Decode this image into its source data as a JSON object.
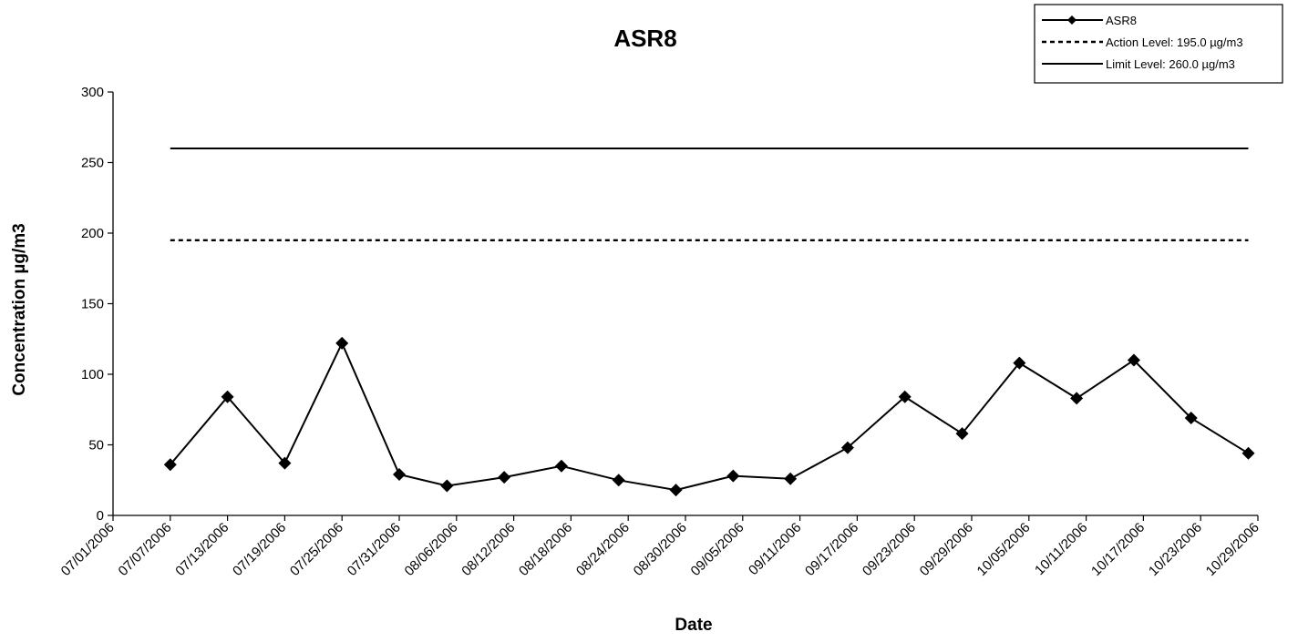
{
  "chart_data": {
    "type": "line",
    "title": "ASR8",
    "xlabel": "Date",
    "ylabel": "Concentration µg/m3",
    "ylim": [
      0,
      300
    ],
    "yticks": [
      0,
      50,
      100,
      150,
      200,
      250,
      300
    ],
    "xlim": [
      "07/01/2006",
      "10/29/2006"
    ],
    "xticks": [
      "07/01/2006",
      "07/07/2006",
      "07/13/2006",
      "07/19/2006",
      "07/25/2006",
      "07/31/2006",
      "08/06/2006",
      "08/12/2006",
      "08/18/2006",
      "08/24/2006",
      "08/30/2006",
      "09/05/2006",
      "09/11/2006",
      "09/17/2006",
      "09/23/2006",
      "09/29/2006",
      "10/05/2006",
      "10/11/2006",
      "10/17/2006",
      "10/23/2006",
      "10/29/2006"
    ],
    "grid": false,
    "legend_position": "top-right",
    "series": [
      {
        "name": "ASR8",
        "style": "solid-with-diamond-markers",
        "color": "#000000",
        "x": [
          "07/07/2006",
          "07/13/2006",
          "07/19/2006",
          "07/25/2006",
          "07/31/2006",
          "08/05/2006",
          "08/11/2006",
          "08/17/2006",
          "08/23/2006",
          "08/29/2006",
          "09/04/2006",
          "09/10/2006",
          "09/16/2006",
          "09/22/2006",
          "09/28/2006",
          "10/04/2006",
          "10/10/2006",
          "10/16/2006",
          "10/22/2006",
          "10/28/2006"
        ],
        "values": [
          36,
          84,
          37,
          122,
          29,
          21,
          27,
          35,
          25,
          18,
          28,
          26,
          48,
          84,
          58,
          108,
          83,
          110,
          69,
          44
        ]
      },
      {
        "name": "Action Level: 195.0 µg/m3",
        "style": "dotted",
        "color": "#000000",
        "x": [
          "07/07/2006",
          "10/28/2006"
        ],
        "values": [
          195,
          195
        ]
      },
      {
        "name": "Limit Level: 260.0 µg/m3",
        "style": "solid",
        "color": "#000000",
        "x": [
          "07/07/2006",
          "10/28/2006"
        ],
        "values": [
          260,
          260
        ]
      }
    ],
    "legend": [
      {
        "label": "ASR8",
        "style": "solid-with-diamond-markers"
      },
      {
        "label": "Action Level: 195.0 µg/m3",
        "style": "dotted"
      },
      {
        "label": "Limit Level: 260.0 µg/m3",
        "style": "solid"
      }
    ]
  }
}
